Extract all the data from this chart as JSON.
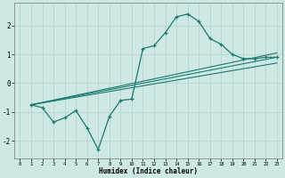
{
  "background_color": "#cde8e5",
  "grid_color": "#b8d4d0",
  "line_color": "#1a7a6e",
  "xlabel": "Humidex (Indice chaleur)",
  "ylim": [
    -2.6,
    2.8
  ],
  "xlim": [
    -0.5,
    23.5
  ],
  "yticks": [
    -2,
    -1,
    0,
    1,
    2
  ],
  "xticks": [
    0,
    1,
    2,
    3,
    4,
    5,
    6,
    7,
    8,
    9,
    10,
    11,
    12,
    13,
    14,
    15,
    16,
    17,
    18,
    19,
    20,
    21,
    22,
    23
  ],
  "curve1_x": [
    1,
    2,
    3,
    4,
    5,
    6,
    7,
    8,
    9,
    10,
    11,
    12,
    13,
    14,
    15,
    16,
    17,
    18,
    19,
    20,
    21,
    22,
    23
  ],
  "curve1_y": [
    -0.75,
    -0.85,
    -1.35,
    -1.2,
    -0.95,
    -1.55,
    -2.3,
    -1.15,
    -0.6,
    -0.55,
    1.2,
    1.3,
    1.75,
    2.3,
    2.4,
    2.15,
    1.55,
    1.35,
    1.0,
    0.85,
    0.85,
    0.9,
    0.9
  ],
  "line1_x": [
    1,
    23
  ],
  "line1_y": [
    -0.75,
    0.9
  ],
  "line2_x": [
    1,
    23
  ],
  "line2_y": [
    -0.75,
    1.05
  ],
  "line3_x": [
    1,
    23
  ],
  "line3_y": [
    -0.75,
    0.7
  ]
}
